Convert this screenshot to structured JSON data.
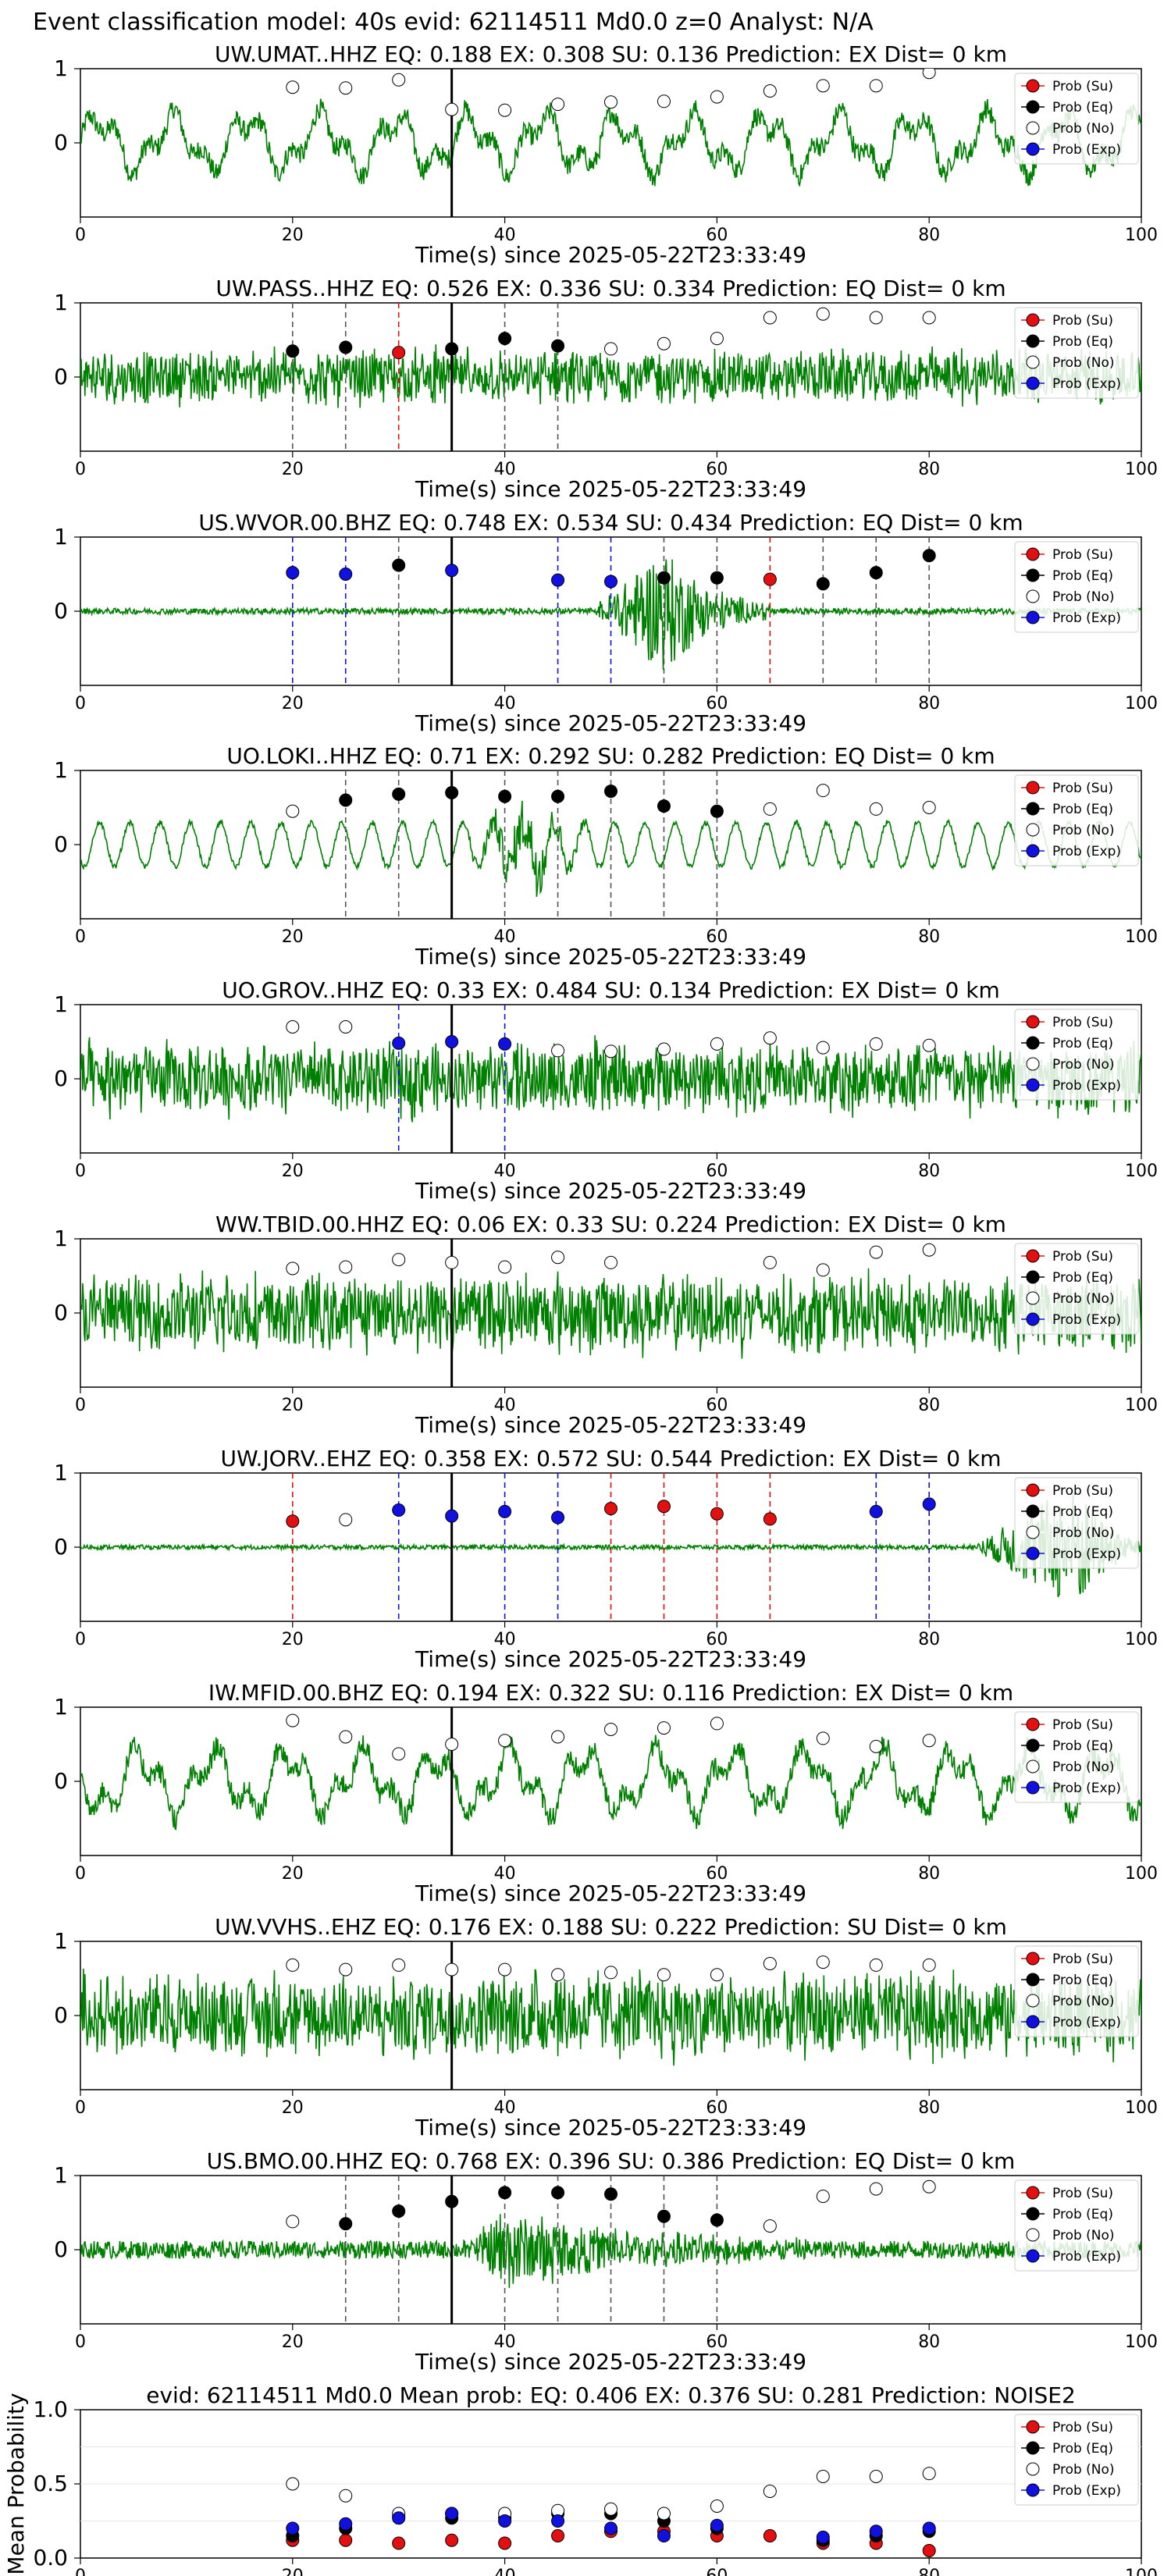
{
  "figure": {
    "suptitle": "Event classification model: 40s evid: 62114511 Md0.0 z=0 Analyst: N/A",
    "colors": {
      "wave": "#008000",
      "su": "#e41010",
      "eq": "#000000",
      "no": "#ffffff",
      "exp": "#1010e0",
      "origin_line": "#000000"
    },
    "legend_labels": [
      "Prob (Su)",
      "Prob (Eq)",
      "Prob (No)",
      "Prob (Exp)"
    ],
    "xlabel": "Time(s) since 2025-05-22T23:33:49",
    "xticks": [
      0,
      20,
      40,
      60,
      80,
      100
    ],
    "yticks": [
      0,
      1
    ],
    "origin_time": 35
  },
  "chart_data": [
    {
      "type": "line",
      "station": "UW.UMAT..HHZ",
      "title": "UW.UMAT..HHZ   EQ: 0.188  EX: 0.308  SU: 0.136   Prediction: EX    Dist= 0 km",
      "xlabel": "Time(s) since 2025-05-22T23:33:49",
      "xlim": [
        0,
        100
      ],
      "ylim": [
        -1,
        1
      ],
      "waveform": {
        "style": "lowfreq",
        "amplitude": 0.55
      },
      "windows": [
        20,
        25,
        30,
        35,
        40,
        45,
        50,
        55,
        60,
        65,
        70,
        75,
        80
      ],
      "pred": [
        "no",
        "no",
        "no",
        "no",
        "no",
        "no",
        "no",
        "no",
        "no",
        "no",
        "no",
        "no",
        "no"
      ],
      "prob": [
        0.75,
        0.74,
        0.85,
        0.45,
        0.44,
        0.52,
        0.55,
        0.56,
        0.62,
        0.7,
        0.77,
        0.77,
        0.95
      ],
      "markers": []
    },
    {
      "type": "line",
      "station": "UW.PASS..HHZ",
      "title": "UW.PASS..HHZ   EQ: 0.526  EX: 0.336  SU: 0.334   Prediction: EQ    Dist= 0 km",
      "xlabel": "Time(s) since 2025-05-22T23:33:49",
      "xlim": [
        0,
        100
      ],
      "ylim": [
        -1,
        1
      ],
      "waveform": {
        "style": "noisy",
        "amplitude": 0.45
      },
      "windows": [
        20,
        25,
        30,
        35,
        40,
        45,
        50,
        55,
        60,
        65,
        70,
        75,
        80
      ],
      "pred": [
        "eq",
        "eq",
        "su",
        "eq",
        "eq",
        "eq",
        "no",
        "no",
        "no",
        "no",
        "no",
        "no",
        "no"
      ],
      "prob": [
        0.35,
        0.4,
        0.33,
        0.38,
        0.52,
        0.42,
        0.38,
        0.45,
        0.52,
        0.8,
        0.85,
        0.8,
        0.8
      ],
      "markers": [
        {
          "x": 20,
          "c": "eq"
        },
        {
          "x": 25,
          "c": "eq"
        },
        {
          "x": 30,
          "c": "su"
        },
        {
          "x": 40,
          "c": "eq"
        },
        {
          "x": 45,
          "c": "eq"
        }
      ]
    },
    {
      "type": "line",
      "station": "US.WVOR.00.BHZ",
      "title": "US.WVOR.00.BHZ   EQ: 0.748  EX: 0.534  SU: 0.434   Prediction: EQ    Dist= 0 km",
      "xlabel": "Time(s) since 2025-05-22T23:33:49",
      "xlim": [
        0,
        100
      ],
      "ylim": [
        -1,
        1
      ],
      "waveform": {
        "style": "event",
        "amplitude": 0.04,
        "burst_start": 48,
        "burst_peak": 55,
        "burst_end": 65,
        "burst_amp": 0.85
      },
      "windows": [
        20,
        25,
        30,
        35,
        45,
        50,
        55,
        60,
        65,
        70,
        75,
        80
      ],
      "pred": [
        "exp",
        "exp",
        "eq",
        "exp",
        "exp",
        "exp",
        "eq",
        "eq",
        "su",
        "eq",
        "eq",
        "eq"
      ],
      "prob": [
        0.52,
        0.5,
        0.62,
        0.55,
        0.42,
        0.4,
        0.45,
        0.45,
        0.43,
        0.37,
        0.52,
        0.75
      ],
      "markers": [
        {
          "x": 20,
          "c": "exp"
        },
        {
          "x": 25,
          "c": "exp"
        },
        {
          "x": 30,
          "c": "eq"
        },
        {
          "x": 45,
          "c": "exp"
        },
        {
          "x": 50,
          "c": "exp"
        },
        {
          "x": 55,
          "c": "eq"
        },
        {
          "x": 60,
          "c": "eq"
        },
        {
          "x": 65,
          "c": "su"
        },
        {
          "x": 70,
          "c": "eq"
        },
        {
          "x": 75,
          "c": "eq"
        },
        {
          "x": 80,
          "c": "eq"
        }
      ]
    },
    {
      "type": "line",
      "station": "UO.LOKI..HHZ",
      "title": "UO.LOKI..HHZ   EQ: 0.71  EX: 0.292  SU: 0.282   Prediction: EQ    Dist= 0 km",
      "xlabel": "Time(s) since 2025-05-22T23:33:49",
      "xlim": [
        0,
        100
      ],
      "ylim": [
        -1,
        1
      ],
      "waveform": {
        "style": "sine",
        "amplitude": 0.35,
        "burst_start": 36,
        "burst_peak": 43,
        "burst_end": 48,
        "burst_amp": 0.45
      },
      "windows": [
        20,
        25,
        30,
        35,
        40,
        45,
        50,
        55,
        60,
        65,
        70,
        75,
        80
      ],
      "pred": [
        "no",
        "eq",
        "eq",
        "eq",
        "eq",
        "eq",
        "eq",
        "eq",
        "eq",
        "no",
        "no",
        "no",
        "no"
      ],
      "prob": [
        0.45,
        0.6,
        0.68,
        0.7,
        0.65,
        0.65,
        0.72,
        0.52,
        0.45,
        0.48,
        0.73,
        0.48,
        0.5
      ],
      "markers": [
        {
          "x": 25,
          "c": "eq"
        },
        {
          "x": 30,
          "c": "eq"
        },
        {
          "x": 40,
          "c": "eq"
        },
        {
          "x": 45,
          "c": "eq"
        },
        {
          "x": 50,
          "c": "eq"
        },
        {
          "x": 55,
          "c": "eq"
        },
        {
          "x": 60,
          "c": "eq"
        }
      ]
    },
    {
      "type": "line",
      "station": "UO.GROV..HHZ",
      "title": "UO.GROV..HHZ   EQ: 0.33  EX: 0.484  SU: 0.134   Prediction: EX    Dist= 0 km",
      "xlabel": "Time(s) since 2025-05-22T23:33:49",
      "xlim": [
        0,
        100
      ],
      "ylim": [
        -1,
        1
      ],
      "waveform": {
        "style": "noisy",
        "amplitude": 0.6
      },
      "windows": [
        20,
        25,
        30,
        35,
        40,
        45,
        50,
        55,
        60,
        65,
        70,
        75,
        80
      ],
      "pred": [
        "no",
        "no",
        "exp",
        "exp",
        "exp",
        "no",
        "no",
        "no",
        "no",
        "no",
        "no",
        "no",
        "no"
      ],
      "prob": [
        0.7,
        0.7,
        0.48,
        0.5,
        0.47,
        0.38,
        0.37,
        0.4,
        0.47,
        0.55,
        0.42,
        0.47,
        0.45
      ],
      "markers": [
        {
          "x": 30,
          "c": "exp"
        },
        {
          "x": 40,
          "c": "exp"
        }
      ]
    },
    {
      "type": "line",
      "station": "WW.TBID.00.HHZ",
      "title": "WW.TBID.00.HHZ   EQ: 0.06  EX: 0.33  SU: 0.224   Prediction: EX    Dist= 0 km",
      "xlabel": "Time(s) since 2025-05-22T23:33:49",
      "xlim": [
        0,
        100
      ],
      "ylim": [
        -1,
        1
      ],
      "waveform": {
        "style": "noisy",
        "amplitude": 0.65
      },
      "windows": [
        20,
        25,
        30,
        35,
        40,
        45,
        50,
        65,
        70,
        75,
        80
      ],
      "pred": [
        "no",
        "no",
        "no",
        "no",
        "no",
        "no",
        "no",
        "no",
        "no",
        "no",
        "no"
      ],
      "prob": [
        0.6,
        0.62,
        0.72,
        0.68,
        0.62,
        0.75,
        0.68,
        0.68,
        0.58,
        0.82,
        0.85
      ],
      "markers": []
    },
    {
      "type": "line",
      "station": "UW.JORV..EHZ",
      "title": "UW.JORV..EHZ   EQ: 0.358  EX: 0.572  SU: 0.544   Prediction: EX    Dist= 0 km",
      "xlabel": "Time(s) since 2025-05-22T23:33:49",
      "xlim": [
        0,
        100
      ],
      "ylim": [
        -1,
        1
      ],
      "waveform": {
        "style": "event",
        "amplitude": 0.03,
        "burst_start": 84,
        "burst_peak": 94,
        "burst_end": 100,
        "burst_amp": 0.9
      },
      "windows": [
        20,
        25,
        30,
        35,
        40,
        45,
        50,
        55,
        60,
        65,
        75,
        80
      ],
      "pred": [
        "su",
        "no",
        "exp",
        "exp",
        "exp",
        "exp",
        "su",
        "su",
        "su",
        "su",
        "exp",
        "exp"
      ],
      "prob": [
        0.35,
        0.37,
        0.5,
        0.42,
        0.48,
        0.4,
        0.52,
        0.55,
        0.45,
        0.38,
        0.48,
        0.58
      ],
      "markers": [
        {
          "x": 20,
          "c": "su"
        },
        {
          "x": 30,
          "c": "exp"
        },
        {
          "x": 40,
          "c": "exp"
        },
        {
          "x": 45,
          "c": "exp"
        },
        {
          "x": 50,
          "c": "su"
        },
        {
          "x": 55,
          "c": "su"
        },
        {
          "x": 60,
          "c": "su"
        },
        {
          "x": 65,
          "c": "su"
        },
        {
          "x": 75,
          "c": "exp"
        },
        {
          "x": 80,
          "c": "exp"
        }
      ]
    },
    {
      "type": "line",
      "station": "IW.MFID.00.BHZ",
      "title": "IW.MFID.00.BHZ   EQ: 0.194  EX: 0.322  SU: 0.116   Prediction: EX    Dist= 0 km",
      "xlabel": "Time(s) since 2025-05-22T23:33:49",
      "xlim": [
        0,
        100
      ],
      "ylim": [
        -1,
        1
      ],
      "waveform": {
        "style": "lowfreq",
        "amplitude": 0.6
      },
      "windows": [
        20,
        25,
        30,
        35,
        40,
        45,
        50,
        55,
        60,
        70,
        75,
        80
      ],
      "pred": [
        "no",
        "no",
        "no",
        "no",
        "no",
        "no",
        "no",
        "no",
        "no",
        "no",
        "no",
        "no"
      ],
      "prob": [
        0.82,
        0.6,
        0.37,
        0.5,
        0.55,
        0.6,
        0.7,
        0.72,
        0.78,
        0.58,
        0.47,
        0.55
      ],
      "markers": []
    },
    {
      "type": "line",
      "station": "UW.VVHS..EHZ",
      "title": "UW.VVHS..EHZ   EQ: 0.176  EX: 0.188  SU: 0.222   Prediction: SU    Dist= 0 km",
      "xlabel": "Time(s) since 2025-05-22T23:33:49",
      "xlim": [
        0,
        100
      ],
      "ylim": [
        -1,
        1
      ],
      "waveform": {
        "style": "noisy",
        "amplitude": 0.7
      },
      "windows": [
        20,
        25,
        30,
        35,
        40,
        45,
        50,
        55,
        60,
        65,
        70,
        75,
        80
      ],
      "pred": [
        "no",
        "no",
        "no",
        "no",
        "no",
        "no",
        "no",
        "no",
        "no",
        "no",
        "no",
        "no",
        "no"
      ],
      "prob": [
        0.68,
        0.62,
        0.68,
        0.62,
        0.62,
        0.55,
        0.58,
        0.55,
        0.55,
        0.7,
        0.72,
        0.68,
        0.68
      ],
      "markers": []
    },
    {
      "type": "line",
      "station": "US.BMO.00.HHZ",
      "title": "US.BMO.00.HHZ   EQ: 0.768  EX: 0.396  SU: 0.386   Prediction: EQ    Dist= 0 km",
      "xlabel": "Time(s) since 2025-05-22T23:33:49",
      "xlim": [
        0,
        100
      ],
      "ylim": [
        -1,
        1
      ],
      "waveform": {
        "style": "event",
        "amplitude": 0.12,
        "burst_start": 36,
        "burst_peak": 40,
        "burst_end": 70,
        "burst_amp": 0.5
      },
      "windows": [
        20,
        25,
        30,
        35,
        40,
        45,
        50,
        55,
        60,
        65,
        70,
        75,
        80
      ],
      "pred": [
        "no",
        "eq",
        "eq",
        "eq",
        "eq",
        "eq",
        "eq",
        "eq",
        "eq",
        "no",
        "no",
        "no",
        "no"
      ],
      "prob": [
        0.38,
        0.35,
        0.52,
        0.65,
        0.77,
        0.77,
        0.75,
        0.45,
        0.4,
        0.32,
        0.72,
        0.82,
        0.85
      ],
      "markers": [
        {
          "x": 25,
          "c": "eq"
        },
        {
          "x": 30,
          "c": "eq"
        },
        {
          "x": 40,
          "c": "eq"
        },
        {
          "x": 45,
          "c": "eq"
        },
        {
          "x": 50,
          "c": "eq"
        },
        {
          "x": 55,
          "c": "eq"
        },
        {
          "x": 60,
          "c": "eq"
        }
      ]
    },
    {
      "type": "scatter",
      "title": "evid: 62114511  Md0.0   Mean prob:   EQ: 0.406  EX: 0.376  SU: 0.281   Prediction: NOISE2",
      "ylabel": "Mean Probability",
      "xlim": [
        0,
        100
      ],
      "ylim": [
        0,
        1
      ],
      "yticks": [
        0.0,
        0.5,
        1.0
      ],
      "ytick_labels": [
        "0.0",
        "0.5",
        "1.0"
      ],
      "x": [
        20,
        25,
        30,
        35,
        40,
        45,
        50,
        55,
        60,
        65,
        70,
        75,
        80
      ],
      "series": [
        {
          "name": "Prob (Su)",
          "class": "su",
          "values": [
            0.12,
            0.12,
            0.1,
            0.12,
            0.1,
            0.15,
            0.18,
            0.18,
            0.15,
            0.15,
            0.1,
            0.1,
            0.05
          ]
        },
        {
          "name": "Prob (Eq)",
          "class": "eq",
          "values": [
            0.15,
            0.2,
            0.28,
            0.27,
            0.27,
            0.3,
            0.3,
            0.25,
            0.2,
            null,
            0.12,
            0.15,
            0.18
          ]
        },
        {
          "name": "Prob (No)",
          "class": "no",
          "values": [
            0.5,
            0.42,
            0.3,
            0.3,
            0.3,
            0.32,
            0.33,
            0.3,
            0.35,
            0.45,
            0.55,
            0.55,
            0.57
          ]
        },
        {
          "name": "Prob (Exp)",
          "class": "exp",
          "values": [
            0.2,
            0.23,
            0.27,
            0.3,
            0.25,
            0.25,
            0.2,
            0.15,
            0.22,
            null,
            0.14,
            0.18,
            0.2
          ]
        }
      ]
    }
  ]
}
